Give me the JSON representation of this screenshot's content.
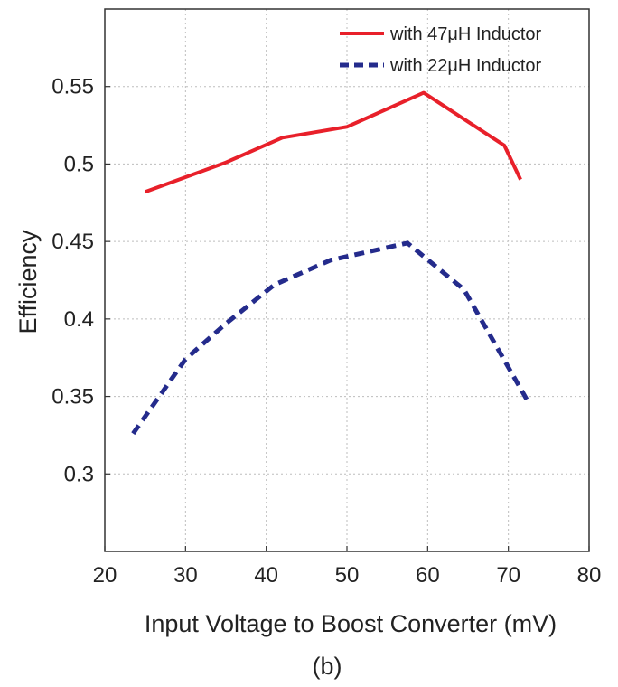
{
  "chart_data": {
    "type": "line",
    "title": "",
    "xlabel": "Input Voltage to Boost Converter (mV)",
    "ylabel": "Efficiency",
    "caption": "(b)",
    "xlim": [
      20,
      80
    ],
    "ylim": [
      0.25,
      0.6
    ],
    "xticks": [
      20,
      30,
      40,
      50,
      60,
      70,
      80
    ],
    "yticks": [
      0.3,
      0.35,
      0.4,
      0.45,
      0.5,
      0.55
    ],
    "xtick_labels": [
      "20",
      "30",
      "40",
      "50",
      "60",
      "70",
      "80"
    ],
    "ytick_labels": [
      "0.3",
      "0.35",
      "0.4",
      "0.45",
      "0.5",
      "0.55"
    ],
    "grid": true,
    "legend_position": "top-right",
    "series": [
      {
        "name": "with 47μH Inductor",
        "color": "#e8202a",
        "style": "solid",
        "x": [
          25,
          35,
          42,
          50,
          59.5,
          69.5,
          71.5
        ],
        "y": [
          0.482,
          0.501,
          0.517,
          0.524,
          0.546,
          0.512,
          0.49
        ]
      },
      {
        "name": "with 22μH Inductor",
        "color": "#242b8c",
        "style": "dashed",
        "x": [
          23.5,
          30,
          35,
          41,
          48,
          57.5,
          64.5,
          72.5
        ],
        "y": [
          0.326,
          0.374,
          0.397,
          0.422,
          0.438,
          0.449,
          0.419,
          0.346
        ]
      }
    ]
  }
}
